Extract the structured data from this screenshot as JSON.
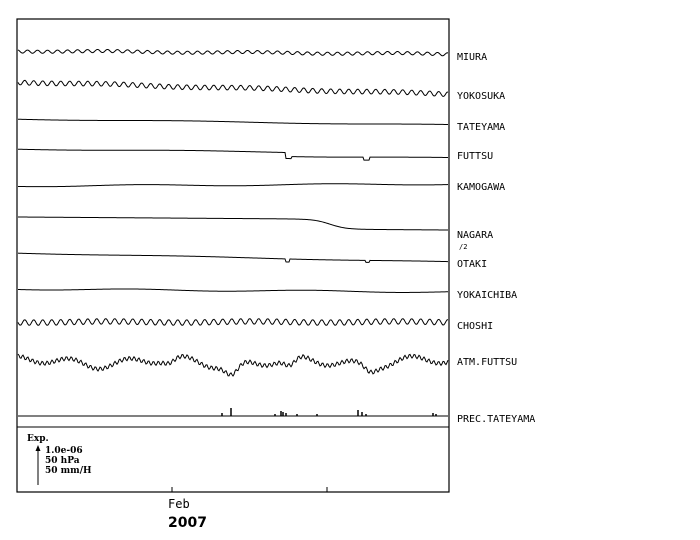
{
  "chart_data": {
    "type": "line",
    "title": "",
    "xlabel": "",
    "ylabel": "",
    "x_tick_labels": [
      "Feb"
    ],
    "x_year_label": "2007",
    "grid": false,
    "series": [
      {
        "name": "MIURA",
        "note": "",
        "pattern": "wave",
        "amp": 1.6,
        "period": 10,
        "drift": 3
      },
      {
        "name": "YOKOSUKA",
        "note": "",
        "pattern": "wave",
        "amp": 2.4,
        "period": 9,
        "drift": 12
      },
      {
        "name": "TATEYAMA",
        "note": "",
        "pattern": "smooth",
        "amp": 0.5,
        "period": 40,
        "drift": 6
      },
      {
        "name": "FUTTSU",
        "note": "",
        "pattern": "steps",
        "amp": 0.5,
        "period": 40,
        "drift": 5
      },
      {
        "name": "KAMOGAWA",
        "note": "",
        "pattern": "smooth",
        "amp": 0.8,
        "period": 30,
        "drift": -2
      },
      {
        "name": "NAGARA",
        "note": "/2",
        "pattern": "sigmoid",
        "amp": 0.4,
        "period": 40,
        "drift": 14
      },
      {
        "name": "OTAKI",
        "note": "",
        "pattern": "steps2",
        "amp": 0.4,
        "period": 40,
        "drift": 9
      },
      {
        "name": "YOKAICHIBA",
        "note": "",
        "pattern": "smooth",
        "amp": 0.8,
        "period": 28,
        "drift": 3
      },
      {
        "name": "CHOSHI",
        "note": "",
        "pattern": "wave",
        "amp": 2.8,
        "period": 9,
        "drift": 0
      },
      {
        "name": "ATM.FUTTSU",
        "note": "",
        "pattern": "pressure",
        "amp": 8,
        "period": 60,
        "drift": 0
      },
      {
        "name": "PREC.TATEYAMA",
        "note": "",
        "pattern": "rain",
        "amp": 0,
        "period": 0,
        "drift": 0
      }
    ],
    "scale_legend": {
      "title": "Exp.",
      "items": [
        "1.0e-06",
        "50 hPa",
        "50 mm/H"
      ]
    }
  }
}
